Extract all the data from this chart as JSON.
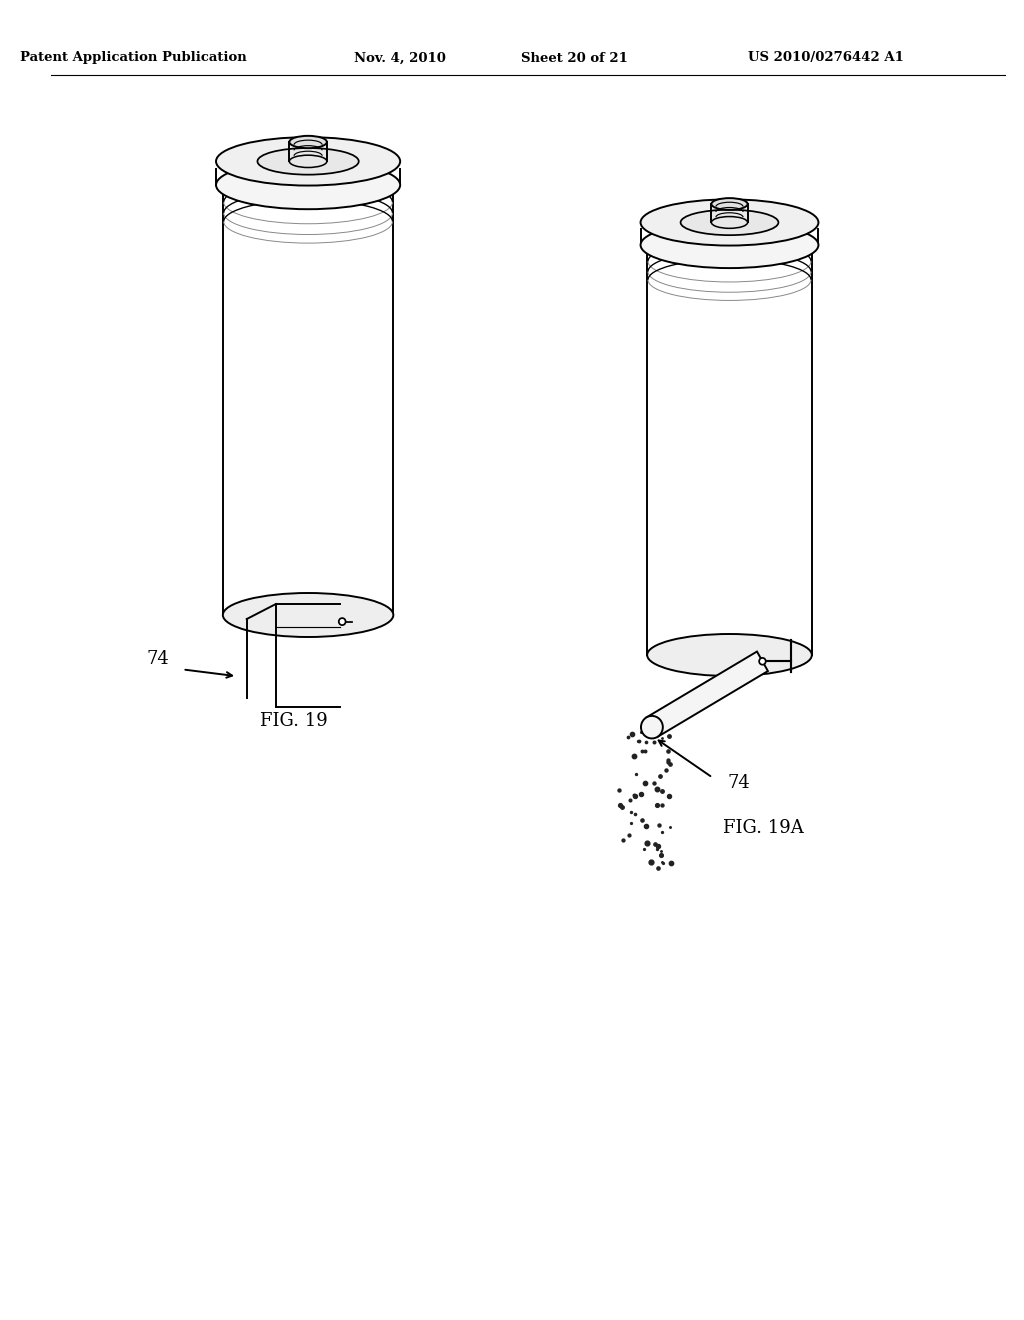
{
  "background_color": "#ffffff",
  "header_left": "Patent Application Publication",
  "header_center": "Nov. 4, 2010",
  "header_right_sheet": "Sheet 20 of 21",
  "header_right_patent": "US 2010/0276442 A1",
  "fig19_label": "FIG. 19",
  "fig19a_label": "FIG. 19A",
  "ref_74_label": "74",
  "line_color": "#000000",
  "line_width": 1.4
}
